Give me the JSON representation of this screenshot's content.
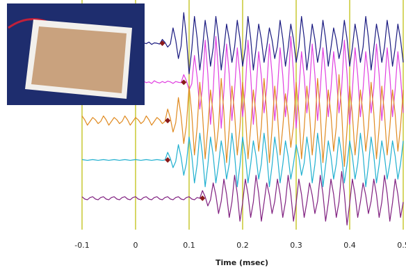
{
  "chart_data": {
    "type": "line",
    "x_label": "Time (msec)",
    "xlim": [
      -0.1,
      0.5
    ],
    "xticks": [
      -0.1,
      0,
      0.1,
      0.2,
      0.3,
      0.4,
      0.5
    ],
    "ylim": [
      0,
      6
    ],
    "grid_color": "#c8c832",
    "x": [
      -0.1,
      -0.095,
      -0.09,
      -0.085,
      -0.08,
      -0.075,
      -0.07,
      -0.065,
      -0.06,
      -0.055,
      -0.05,
      -0.045,
      -0.04,
      -0.035,
      -0.03,
      -0.025,
      -0.02,
      -0.015,
      -0.01,
      -0.005,
      0,
      0.005,
      0.01,
      0.015,
      0.02,
      0.025,
      0.03,
      0.035,
      0.04,
      0.045,
      0.05,
      0.055,
      0.06,
      0.065,
      0.07,
      0.075,
      0.08,
      0.085,
      0.09,
      0.095,
      0.1,
      0.105,
      0.11,
      0.115,
      0.12,
      0.125,
      0.13,
      0.135,
      0.14,
      0.145,
      0.15,
      0.155,
      0.16,
      0.165,
      0.17,
      0.175,
      0.18,
      0.185,
      0.19,
      0.195,
      0.2,
      0.205,
      0.21,
      0.215,
      0.22,
      0.225,
      0.23,
      0.235,
      0.24,
      0.245,
      0.25,
      0.255,
      0.26,
      0.265,
      0.27,
      0.275,
      0.28,
      0.285,
      0.29,
      0.295,
      0.3,
      0.305,
      0.31,
      0.315,
      0.32,
      0.325,
      0.33,
      0.335,
      0.34,
      0.345,
      0.35,
      0.355,
      0.36,
      0.365,
      0.37,
      0.375,
      0.38,
      0.385,
      0.39,
      0.395,
      0.4,
      0.405,
      0.41,
      0.415,
      0.42,
      0.425,
      0.43,
      0.435,
      0.44,
      0.445,
      0.45,
      0.455,
      0.46,
      0.465,
      0.47,
      0.475,
      0.48,
      0.485,
      0.49,
      0.495,
      0.5
    ],
    "series": [
      {
        "color": "#1a1a80",
        "values": [
          null,
          null,
          null,
          null,
          null,
          null,
          null,
          null,
          null,
          null,
          null,
          null,
          null,
          null,
          null,
          null,
          null,
          null,
          null,
          null,
          null,
          4.89,
          4.85,
          4.88,
          4.86,
          4.9,
          4.84,
          4.88,
          4.87,
          4.85,
          4.97,
          4.89,
          4.77,
          4.85,
          5.27,
          4.95,
          4.47,
          4.79,
          5.67,
          5.03,
          4.07,
          4.71,
          5.57,
          5.01,
          4.17,
          4.73,
          5.47,
          4.99,
          4.27,
          4.75,
          5.57,
          5.01,
          4.17,
          4.73,
          5.37,
          4.97,
          4.37,
          4.77,
          5.47,
          4.99,
          4.27,
          4.75,
          5.57,
          5.01,
          4.17,
          4.73,
          5.37,
          4.97,
          4.37,
          4.77,
          5.27,
          4.95,
          4.47,
          4.79,
          5.47,
          4.99,
          4.27,
          4.75,
          5.37,
          4.97,
          4.37,
          4.77,
          5.57,
          5.01,
          4.17,
          4.73,
          5.37,
          4.97,
          4.37,
          4.77,
          5.47,
          4.99,
          4.27,
          4.75,
          5.27,
          4.95,
          4.47,
          4.79,
          5.47,
          4.99,
          4.27,
          4.75,
          5.37,
          4.97,
          4.37,
          4.77,
          5.57,
          5.01,
          4.17,
          4.73,
          5.37,
          4.97,
          4.37,
          4.77,
          5.47,
          4.99,
          4.27,
          4.75,
          5.37,
          4.97,
          4.37
        ]
      },
      {
        "color": "#e040e0",
        "values": [
          null,
          null,
          null,
          null,
          null,
          null,
          null,
          null,
          null,
          null,
          null,
          null,
          null,
          null,
          null,
          null,
          null,
          null,
          null,
          null,
          null,
          3.87,
          3.83,
          3.88,
          3.84,
          3.86,
          3.82,
          3.89,
          3.85,
          3.83,
          3.87,
          3.84,
          3.88,
          3.86,
          3.82,
          3.87,
          3.85,
          3.84,
          4.05,
          3.89,
          3.65,
          3.81,
          4.55,
          3.99,
          3.15,
          3.71,
          4.95,
          4.07,
          2.75,
          3.63,
          5.05,
          4.09,
          2.65,
          3.61,
          4.85,
          4.05,
          2.85,
          3.65,
          4.75,
          4.03,
          2.95,
          3.67,
          4.95,
          4.07,
          2.75,
          3.63,
          4.65,
          4.01,
          3.05,
          3.69,
          4.85,
          4.05,
          2.85,
          3.65,
          4.75,
          4.03,
          2.95,
          3.67,
          5.05,
          4.09,
          2.65,
          3.61,
          4.65,
          4.01,
          3.05,
          3.69,
          4.85,
          4.05,
          2.85,
          3.65,
          4.75,
          4.03,
          2.95,
          3.67,
          4.65,
          4.01,
          3.05,
          3.69,
          4.95,
          4.07,
          2.75,
          3.63,
          4.75,
          4.03,
          2.95,
          3.67,
          4.65,
          4.01,
          3.05,
          3.69,
          4.85,
          4.05,
          2.85,
          3.65,
          4.75,
          4.03,
          2.95,
          3.67,
          4.65,
          4.01,
          3.05
        ]
      },
      {
        "color": "#e08a20",
        "values": [
          2.97,
          2.87,
          2.73,
          2.83,
          2.93,
          2.87,
          2.77,
          2.83,
          2.97,
          2.87,
          2.73,
          2.83,
          2.93,
          2.87,
          2.77,
          2.83,
          2.97,
          2.87,
          2.73,
          2.83,
          2.93,
          2.87,
          2.77,
          2.83,
          2.97,
          2.87,
          2.73,
          2.83,
          2.93,
          2.87,
          2.77,
          2.83,
          3.15,
          2.91,
          2.55,
          2.79,
          3.45,
          2.97,
          2.25,
          2.73,
          3.75,
          3.03,
          1.95,
          2.67,
          3.85,
          3.05,
          1.85,
          2.65,
          3.65,
          3.01,
          2.05,
          2.69,
          3.95,
          3.07,
          1.75,
          2.63,
          3.75,
          3.03,
          1.95,
          2.67,
          3.85,
          3.05,
          1.85,
          2.65,
          3.65,
          3.01,
          2.05,
          2.69,
          3.95,
          3.07,
          1.75,
          2.63,
          3.75,
          3.03,
          1.95,
          2.67,
          3.55,
          2.99,
          2.15,
          2.71,
          3.85,
          3.05,
          1.85,
          2.65,
          3.75,
          3.03,
          1.95,
          2.67,
          3.95,
          3.07,
          1.75,
          2.63,
          3.65,
          3.01,
          2.05,
          2.69,
          4.05,
          3.09,
          1.65,
          2.61,
          3.75,
          3.03,
          1.95,
          2.67,
          3.65,
          3.01,
          2.05,
          2.69,
          3.85,
          3.05,
          1.85,
          2.65,
          3.75,
          3.03,
          1.95,
          2.67,
          3.65,
          3.01,
          2.05,
          2.69,
          3.65
        ]
      },
      {
        "color": "#20b0d0",
        "values": [
          1.83,
          1.82,
          1.81,
          1.82,
          1.83,
          1.82,
          1.81,
          1.82,
          1.83,
          1.82,
          1.81,
          1.82,
          1.83,
          1.82,
          1.81,
          1.82,
          1.83,
          1.82,
          1.81,
          1.82,
          1.83,
          1.82,
          1.81,
          1.82,
          1.83,
          1.82,
          1.81,
          1.82,
          1.83,
          1.82,
          1.81,
          1.82,
          2.02,
          1.86,
          1.62,
          1.78,
          2.22,
          1.9,
          1.42,
          1.74,
          2.42,
          1.94,
          1.22,
          1.7,
          2.52,
          1.96,
          1.12,
          1.68,
          2.42,
          1.94,
          1.22,
          1.7,
          2.32,
          1.92,
          1.32,
          1.72,
          2.52,
          1.96,
          1.12,
          1.68,
          2.42,
          1.94,
          1.22,
          1.7,
          2.32,
          1.92,
          1.32,
          1.72,
          2.52,
          1.96,
          1.12,
          1.68,
          2.42,
          1.94,
          1.22,
          1.7,
          2.32,
          1.92,
          1.32,
          1.72,
          2.22,
          1.9,
          1.42,
          1.74,
          2.42,
          1.94,
          1.22,
          1.7,
          2.52,
          1.96,
          1.12,
          1.68,
          2.32,
          1.92,
          1.32,
          1.72,
          2.42,
          1.94,
          1.22,
          1.7,
          2.32,
          1.92,
          1.32,
          1.72,
          2.52,
          1.96,
          1.12,
          1.68,
          2.42,
          1.94,
          1.22,
          1.7,
          2.32,
          1.92,
          1.32,
          1.72,
          2.32,
          1.92,
          1.32,
          1.72,
          2.32
        ]
      },
      {
        "color": "#802080",
        "values": [
          0.86,
          0.8,
          0.78,
          0.84,
          0.86,
          0.8,
          0.78,
          0.84,
          0.86,
          0.8,
          0.78,
          0.84,
          0.86,
          0.8,
          0.78,
          0.84,
          0.86,
          0.8,
          0.78,
          0.84,
          0.86,
          0.8,
          0.78,
          0.84,
          0.86,
          0.8,
          0.78,
          0.84,
          0.86,
          0.8,
          0.78,
          0.84,
          0.86,
          0.8,
          0.78,
          0.84,
          0.86,
          0.8,
          0.78,
          0.84,
          0.86,
          0.8,
          0.78,
          0.84,
          0.82,
          1.02,
          0.86,
          0.62,
          0.78,
          1.22,
          0.9,
          0.42,
          0.74,
          1.32,
          0.92,
          0.32,
          0.72,
          1.42,
          0.94,
          0.22,
          0.7,
          1.32,
          0.92,
          0.32,
          0.72,
          1.42,
          0.94,
          0.22,
          0.7,
          1.22,
          0.9,
          0.42,
          0.74,
          1.32,
          0.92,
          0.32,
          0.72,
          1.42,
          0.94,
          0.22,
          0.7,
          1.32,
          0.92,
          0.32,
          0.72,
          1.22,
          0.9,
          0.42,
          0.74,
          1.42,
          0.94,
          0.22,
          0.7,
          1.32,
          0.92,
          0.32,
          0.72,
          1.52,
          0.96,
          0.12,
          0.68,
          1.32,
          0.92,
          0.32,
          0.72,
          1.22,
          0.9,
          0.42,
          0.74,
          1.32,
          0.92,
          0.32,
          0.72,
          1.42,
          0.94,
          0.22,
          0.7,
          1.32,
          0.92,
          0.32,
          0.72
        ]
      }
    ],
    "markers": {
      "color": "#8b1a1a",
      "x": [
        0.05,
        0.09,
        0.06,
        0.06,
        0.125
      ],
      "values": [
        4.87,
        3.85,
        2.85,
        1.82,
        0.82
      ]
    }
  }
}
